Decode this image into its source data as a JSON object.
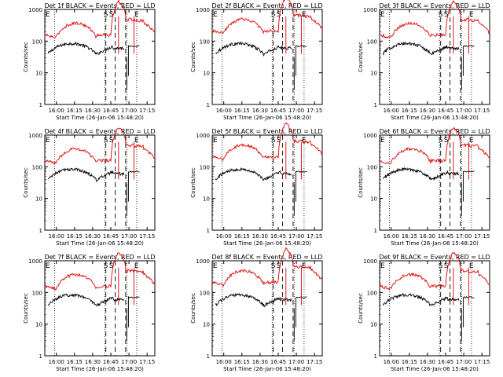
{
  "colors": {
    "events": "#000000",
    "lld": "#e00000",
    "axis": "#000000",
    "background": "#ffffff"
  },
  "common": {
    "ylabel": "Counts/sec",
    "xlabel": "Start Time (26-Jan-06 15:48:20)",
    "xticks": [
      "16:00",
      "16:15",
      "16:30",
      "16:45",
      "17:00",
      "17:15"
    ],
    "yticks": [
      "1",
      "10",
      "100",
      "1000"
    ],
    "marker_e": "E",
    "marker_s": "S"
  },
  "chart_data": [
    {
      "type": "line",
      "title": "Det 1f  BLACK = Events, RED = LLD",
      "ylim": [
        1,
        1000
      ],
      "yscale": "log",
      "xlim": [
        "15:48:20",
        "17:25"
      ],
      "series": [
        {
          "name": "Events",
          "color": "#000000",
          "shape": 0
        },
        {
          "name": "LLD",
          "color": "#e00000",
          "shape": 0
        }
      ]
    },
    {
      "type": "line",
      "title": "Det 2f  BLACK = Events, RED = LLD",
      "ylim": [
        1,
        1000
      ],
      "yscale": "log",
      "xlim": [
        "15:48:20",
        "17:25"
      ],
      "series": [
        {
          "name": "Events",
          "color": "#000000",
          "shape": 1
        },
        {
          "name": "LLD",
          "color": "#e00000",
          "shape": 1
        }
      ]
    },
    {
      "type": "line",
      "title": "Det 3f  BLACK = Events, RED = LLD",
      "ylim": [
        1,
        1000
      ],
      "yscale": "log",
      "xlim": [
        "15:48:20",
        "17:25"
      ],
      "series": [
        {
          "name": "Events",
          "color": "#000000",
          "shape": 0
        },
        {
          "name": "LLD",
          "color": "#e00000",
          "shape": 0
        }
      ]
    },
    {
      "type": "line",
      "title": "Det 4f  BLACK = Events, RED = LLD",
      "ylim": [
        1,
        1000
      ],
      "yscale": "log",
      "xlim": [
        "15:48:20",
        "17:25"
      ],
      "series": [
        {
          "name": "Events",
          "color": "#000000",
          "shape": 0
        },
        {
          "name": "LLD",
          "color": "#e00000",
          "shape": 0
        }
      ]
    },
    {
      "type": "line",
      "title": "Det 5f  BLACK = Events, RED = LLD",
      "ylim": [
        1,
        1000
      ],
      "yscale": "log",
      "xlim": [
        "15:48:20",
        "17:25"
      ],
      "series": [
        {
          "name": "Events",
          "color": "#000000",
          "shape": 1
        },
        {
          "name": "LLD",
          "color": "#e00000",
          "shape": 1
        }
      ]
    },
    {
      "type": "line",
      "title": "Det 6f  BLACK = Events, RED = LLD",
      "ylim": [
        1,
        1000
      ],
      "yscale": "log",
      "xlim": [
        "15:48:20",
        "17:25"
      ],
      "series": [
        {
          "name": "Events",
          "color": "#000000",
          "shape": 0
        },
        {
          "name": "LLD",
          "color": "#e00000",
          "shape": 0
        }
      ]
    },
    {
      "type": "line",
      "title": "Det 7f  BLACK = Events, RED = LLD",
      "ylim": [
        1,
        1000
      ],
      "yscale": "log",
      "xlim": [
        "15:48:20",
        "17:25"
      ],
      "series": [
        {
          "name": "Events",
          "color": "#000000",
          "shape": 0
        },
        {
          "name": "LLD",
          "color": "#e00000",
          "shape": 0
        }
      ]
    },
    {
      "type": "line",
      "title": "Det 8f  BLACK = Events, RED = LLD",
      "ylim": [
        1,
        1000
      ],
      "yscale": "log",
      "xlim": [
        "15:48:20",
        "17:25"
      ],
      "series": [
        {
          "name": "Events",
          "color": "#000000",
          "shape": 1
        },
        {
          "name": "LLD",
          "color": "#e00000",
          "shape": 1
        }
      ]
    },
    {
      "type": "line",
      "title": "Det 9f  BLACK = Events, RED = LLD",
      "ylim": [
        1,
        1000
      ],
      "yscale": "log",
      "xlim": [
        "15:48:20",
        "17:25"
      ],
      "series": [
        {
          "name": "Events",
          "color": "#000000",
          "shape": 0
        },
        {
          "name": "LLD",
          "color": "#e00000",
          "shape": 0
        }
      ]
    }
  ]
}
